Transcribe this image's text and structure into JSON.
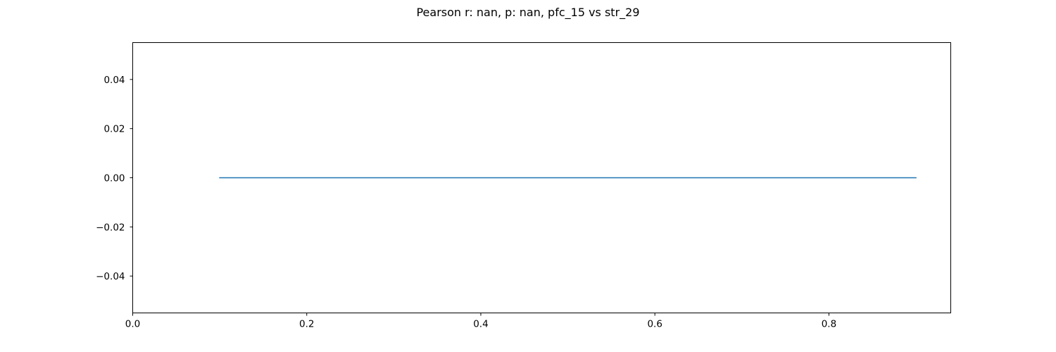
{
  "chart_data": {
    "type": "line",
    "title": "Pearson r: nan, p: nan, pfc_15 vs str_29",
    "xlabel": "",
    "ylabel": "",
    "xlim": [
      0.0,
      0.94
    ],
    "ylim": [
      -0.055,
      0.055
    ],
    "xticks": [
      0.0,
      0.2,
      0.4,
      0.6,
      0.8
    ],
    "xtick_labels": [
      "0.0",
      "0.2",
      "0.4",
      "0.6",
      "0.8"
    ],
    "yticks": [
      0.04,
      0.02,
      0.0,
      -0.02,
      -0.04
    ],
    "ytick_labels": [
      "0.04",
      "0.02",
      "0.00",
      "−0.02",
      "−0.04"
    ],
    "grid": false,
    "series": [
      {
        "color": "#1f77b4",
        "x": [
          0.1,
          0.9
        ],
        "y": [
          0.0,
          0.0
        ]
      }
    ]
  }
}
